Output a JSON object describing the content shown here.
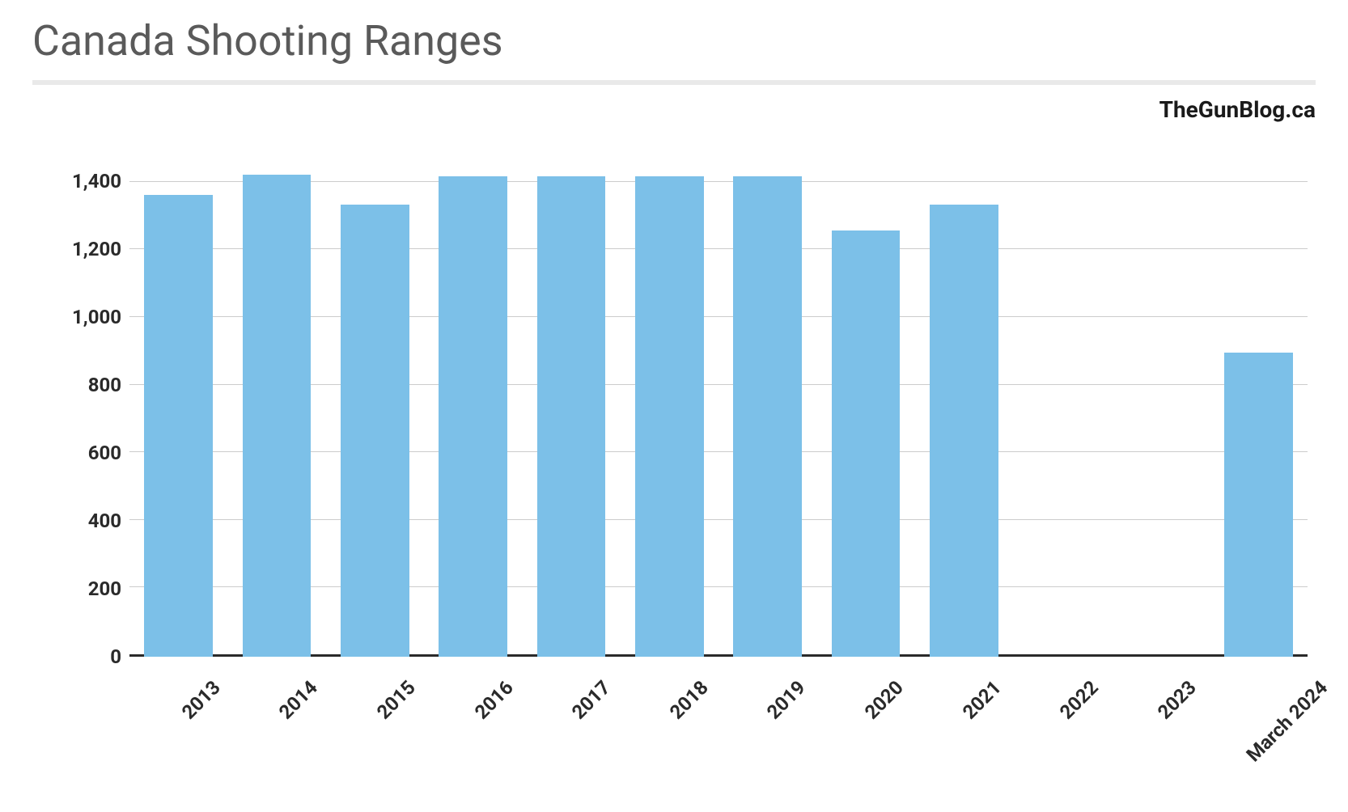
{
  "chart": {
    "type": "bar",
    "title": "Canada Shooting Ranges",
    "title_fontsize": 52,
    "title_color": "#5a5a5a",
    "subtitle": "TheGunBlog.ca",
    "subtitle_fontsize": 28,
    "subtitle_color": "#1a1a1a",
    "background_color": "#ffffff",
    "grid_color": "#cccccc",
    "axis_color": "#2a2a2a",
    "underline_color": "#e9e9e9",
    "categories": [
      "2013",
      "2014",
      "2015",
      "2016",
      "2017",
      "2018",
      "2019",
      "2020",
      "2021",
      "2022",
      "2023",
      "March 2024"
    ],
    "values": [
      1360,
      1420,
      1330,
      1415,
      1415,
      1415,
      1415,
      1255,
      1330,
      0,
      0,
      895
    ],
    "bar_color": "#7cc0e8",
    "bar_width": 0.7,
    "ylim": [
      0,
      1500
    ],
    "yticks": [
      0,
      200,
      400,
      600,
      800,
      1000,
      1200,
      1400
    ],
    "ytick_labels": [
      "0",
      "200",
      "400",
      "600",
      "800",
      "1,000",
      "1,200",
      "1,400"
    ],
    "label_fontsize": 24,
    "label_weight": "700",
    "label_color": "#2a2a2a",
    "xlabel_rotation": -45
  }
}
